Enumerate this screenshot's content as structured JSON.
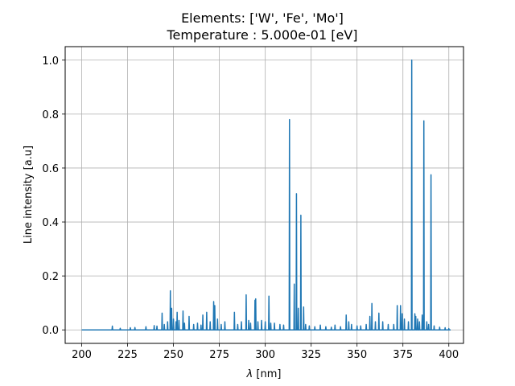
{
  "chart_data": {
    "type": "line",
    "title_line1": "Elements: ['W', 'Fe', 'Mo']",
    "title_line2": "Temperature : 5.000e-01 [eV]",
    "xlabel_symbol": "λ",
    "xlabel_unit": " [nm]",
    "ylabel": "Line intensity [a.u]",
    "xlim": [
      191,
      408
    ],
    "ylim": [
      -0.05,
      1.05
    ],
    "grid": true,
    "x_ticks": [
      200,
      225,
      250,
      275,
      300,
      325,
      350,
      375,
      400
    ],
    "x_tick_labels": [
      "200",
      "225",
      "250",
      "275",
      "300",
      "325",
      "350",
      "375",
      "400"
    ],
    "y_ticks": [
      0.0,
      0.2,
      0.4,
      0.6,
      0.8,
      1.0
    ],
    "y_tick_labels": [
      "0.0",
      "0.2",
      "0.4",
      "0.6",
      "0.8",
      "1.0"
    ],
    "series": [
      {
        "color": "#1f77b4",
        "peaks": [
          {
            "x": 216.7,
            "y": 0.014
          },
          {
            "x": 221.0,
            "y": 0.006
          },
          {
            "x": 226.5,
            "y": 0.008
          },
          {
            "x": 229.0,
            "y": 0.009
          },
          {
            "x": 235.0,
            "y": 0.012
          },
          {
            "x": 239.5,
            "y": 0.016
          },
          {
            "x": 241.0,
            "y": 0.014
          },
          {
            "x": 243.8,
            "y": 0.062
          },
          {
            "x": 245.0,
            "y": 0.02
          },
          {
            "x": 246.8,
            "y": 0.03
          },
          {
            "x": 248.3,
            "y": 0.145
          },
          {
            "x": 249.0,
            "y": 0.08
          },
          {
            "x": 250.0,
            "y": 0.04
          },
          {
            "x": 251.4,
            "y": 0.03
          },
          {
            "x": 252.0,
            "y": 0.065
          },
          {
            "x": 253.0,
            "y": 0.035
          },
          {
            "x": 255.2,
            "y": 0.07
          },
          {
            "x": 256.0,
            "y": 0.025
          },
          {
            "x": 258.5,
            "y": 0.05
          },
          {
            "x": 261.0,
            "y": 0.02
          },
          {
            "x": 263.1,
            "y": 0.025
          },
          {
            "x": 265.0,
            "y": 0.018
          },
          {
            "x": 266.0,
            "y": 0.055
          },
          {
            "x": 268.1,
            "y": 0.065
          },
          {
            "x": 270.0,
            "y": 0.03
          },
          {
            "x": 271.9,
            "y": 0.105
          },
          {
            "x": 272.5,
            "y": 0.09
          },
          {
            "x": 274.0,
            "y": 0.04
          },
          {
            "x": 276.0,
            "y": 0.02
          },
          {
            "x": 278.0,
            "y": 0.03
          },
          {
            "x": 283.2,
            "y": 0.065
          },
          {
            "x": 285.0,
            "y": 0.02
          },
          {
            "x": 287.0,
            "y": 0.03
          },
          {
            "x": 289.6,
            "y": 0.13
          },
          {
            "x": 291.0,
            "y": 0.035
          },
          {
            "x": 292.0,
            "y": 0.025
          },
          {
            "x": 294.4,
            "y": 0.11
          },
          {
            "x": 294.8,
            "y": 0.115
          },
          {
            "x": 296.0,
            "y": 0.03
          },
          {
            "x": 298.0,
            "y": 0.035
          },
          {
            "x": 300.0,
            "y": 0.03
          },
          {
            "x": 302.0,
            "y": 0.125
          },
          {
            "x": 303.0,
            "y": 0.025
          },
          {
            "x": 305.0,
            "y": 0.025
          },
          {
            "x": 308.0,
            "y": 0.02
          },
          {
            "x": 310.0,
            "y": 0.018
          },
          {
            "x": 313.2,
            "y": 0.78
          },
          {
            "x": 315.8,
            "y": 0.17
          },
          {
            "x": 317.0,
            "y": 0.505
          },
          {
            "x": 318.0,
            "y": 0.08
          },
          {
            "x": 319.4,
            "y": 0.425
          },
          {
            "x": 320.9,
            "y": 0.085
          },
          {
            "x": 322.0,
            "y": 0.02
          },
          {
            "x": 324.0,
            "y": 0.015
          },
          {
            "x": 327.0,
            "y": 0.012
          },
          {
            "x": 330.0,
            "y": 0.018
          },
          {
            "x": 333.0,
            "y": 0.012
          },
          {
            "x": 336.0,
            "y": 0.01
          },
          {
            "x": 338.0,
            "y": 0.018
          },
          {
            "x": 341.0,
            "y": 0.012
          },
          {
            "x": 344.1,
            "y": 0.055
          },
          {
            "x": 345.5,
            "y": 0.03
          },
          {
            "x": 347.0,
            "y": 0.02
          },
          {
            "x": 350.0,
            "y": 0.015
          },
          {
            "x": 352.0,
            "y": 0.015
          },
          {
            "x": 355.0,
            "y": 0.02
          },
          {
            "x": 357.0,
            "y": 0.05
          },
          {
            "x": 358.1,
            "y": 0.098
          },
          {
            "x": 360.0,
            "y": 0.03
          },
          {
            "x": 361.9,
            "y": 0.062
          },
          {
            "x": 364.0,
            "y": 0.03
          },
          {
            "x": 367.0,
            "y": 0.02
          },
          {
            "x": 370.0,
            "y": 0.02
          },
          {
            "x": 371.9,
            "y": 0.09
          },
          {
            "x": 373.7,
            "y": 0.09
          },
          {
            "x": 374.6,
            "y": 0.06
          },
          {
            "x": 375.8,
            "y": 0.04
          },
          {
            "x": 378.0,
            "y": 0.03
          },
          {
            "x": 379.8,
            "y": 1.0
          },
          {
            "x": 381.5,
            "y": 0.06
          },
          {
            "x": 382.0,
            "y": 0.05
          },
          {
            "x": 383.0,
            "y": 0.04
          },
          {
            "x": 384.0,
            "y": 0.03
          },
          {
            "x": 385.5,
            "y": 0.055
          },
          {
            "x": 386.4,
            "y": 0.775
          },
          {
            "x": 388.0,
            "y": 0.03
          },
          {
            "x": 389.0,
            "y": 0.02
          },
          {
            "x": 390.3,
            "y": 0.575
          },
          {
            "x": 392.0,
            "y": 0.015
          },
          {
            "x": 395.0,
            "y": 0.01
          },
          {
            "x": 398.0,
            "y": 0.008
          },
          {
            "x": 400.0,
            "y": 0.005
          }
        ]
      }
    ]
  }
}
